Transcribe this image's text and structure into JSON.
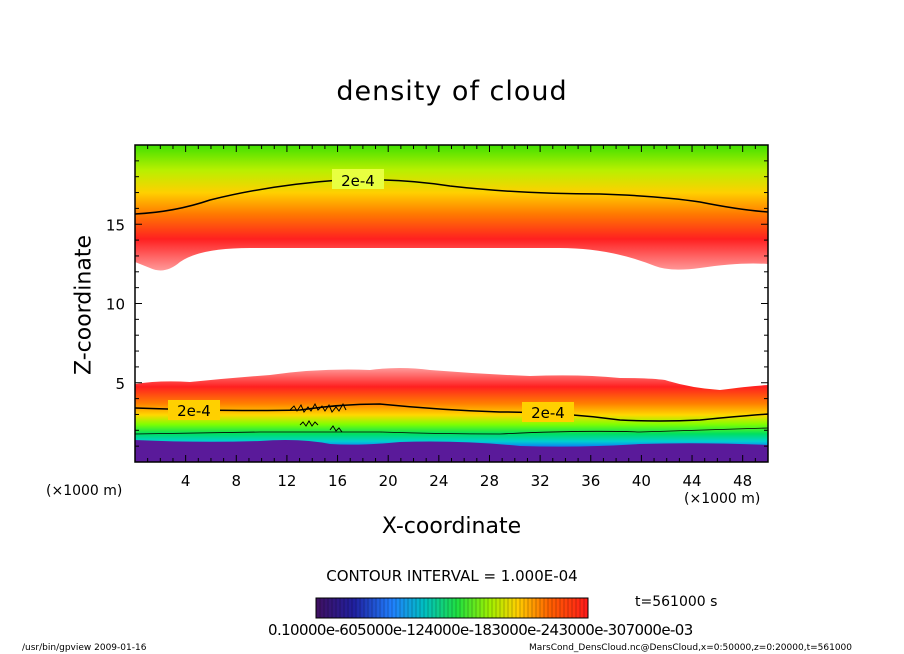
{
  "chart_data": {
    "type": "heatmap",
    "title": "density of cloud",
    "xlabel": "X-coordinate",
    "ylabel": "Z-coordinate",
    "x_unit": "(×1000 m)",
    "y_unit": "(×1000 m)",
    "xlim": [
      0,
      50
    ],
    "ylim": [
      0,
      20
    ],
    "x_ticks": [
      4,
      8,
      12,
      16,
      20,
      24,
      28,
      32,
      36,
      40,
      44,
      48
    ],
    "y_ticks": [
      5,
      10,
      15
    ],
    "contour_labels": [
      "2e-4",
      "2e-4",
      "2e-4"
    ],
    "contour_interval": "CONTOUR INTERVAL = 1.000E-04",
    "time_label": "t=561000 s",
    "colorbar_text": "0.10000e-605000e-124000e-183000e-243000e-307000e-03",
    "colors": {
      "low": "#5a1a9a",
      "mid_low": "#1560ff",
      "mid": "#00e0a0",
      "mid_high": "#40ff20",
      "high": "#f0e000",
      "peak": "#ff1a1a"
    }
  },
  "footer": {
    "left": "/usr/bin/gpview   2009-01-16",
    "right": "MarsCond_DensCloud.nc@DensCloud,x=0:50000,z=0:20000,t=561000"
  }
}
